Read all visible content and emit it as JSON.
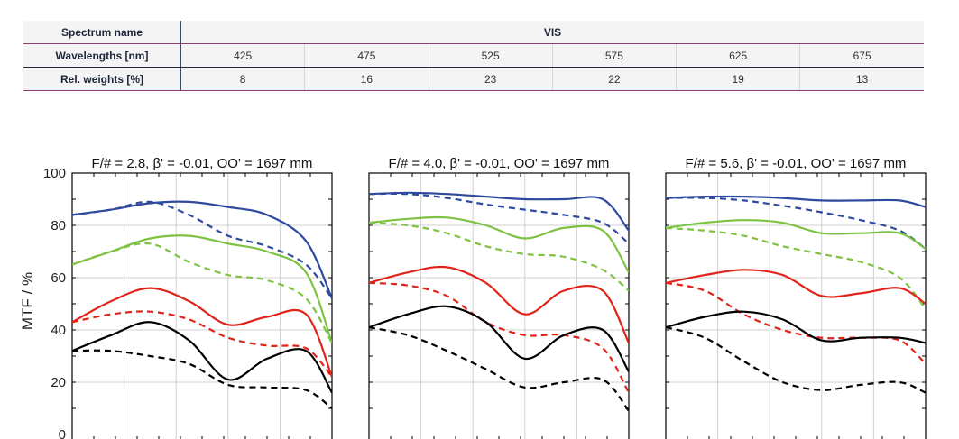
{
  "table": {
    "spectrum_label": "Spectrum name",
    "spectrum_value": "VIS",
    "wavelengths_label": "Wavelengths [nm]",
    "wavelengths": [
      "425",
      "475",
      "525",
      "575",
      "625",
      "675"
    ],
    "weights_label": "Rel. weights [%]",
    "weights": [
      "8",
      "16",
      "23",
      "22",
      "19",
      "13"
    ]
  },
  "colors": {
    "blue": "#2e4a9e",
    "green": "#7ec242",
    "red": "#e2231a",
    "black": "#000000"
  },
  "chart_data": [
    {
      "type": "line",
      "title": "F/# = 2.8, β' = -0.01, OO' = 1697 mm",
      "ylabel": "MTF / %",
      "ylim": [
        0,
        100
      ],
      "yticks": [
        "100",
        "80",
        "60",
        "40",
        "20",
        "0"
      ],
      "xlim": [
        0,
        1
      ],
      "grid": true,
      "series": [
        {
          "color": "blue",
          "style": "solid",
          "x": [
            0,
            0.15,
            0.3,
            0.45,
            0.6,
            0.75,
            0.9,
            1
          ],
          "y": [
            84,
            86,
            88.5,
            89,
            87,
            84,
            74,
            52
          ]
        },
        {
          "color": "blue",
          "style": "dashed",
          "x": [
            0,
            0.15,
            0.3,
            0.45,
            0.6,
            0.75,
            0.9,
            1
          ],
          "y": [
            84,
            86,
            89,
            84,
            76,
            72,
            65,
            52
          ]
        },
        {
          "color": "green",
          "style": "solid",
          "x": [
            0,
            0.15,
            0.3,
            0.45,
            0.6,
            0.75,
            0.9,
            1
          ],
          "y": [
            65,
            70,
            75,
            76,
            73,
            70,
            62,
            35
          ]
        },
        {
          "color": "green",
          "style": "dashed",
          "x": [
            0,
            0.15,
            0.3,
            0.45,
            0.6,
            0.75,
            0.9,
            1
          ],
          "y": [
            65,
            70,
            73,
            66,
            61,
            59,
            52,
            35
          ]
        },
        {
          "color": "red",
          "style": "solid",
          "x": [
            0,
            0.15,
            0.3,
            0.45,
            0.6,
            0.75,
            0.9,
            1
          ],
          "y": [
            43,
            51,
            56,
            51,
            42,
            45,
            46,
            22
          ]
        },
        {
          "color": "red",
          "style": "dashed",
          "x": [
            0,
            0.15,
            0.3,
            0.45,
            0.6,
            0.75,
            0.9,
            1
          ],
          "y": [
            43,
            46,
            47,
            44,
            37,
            34,
            33,
            22
          ]
        },
        {
          "color": "black",
          "style": "solid",
          "x": [
            0,
            0.15,
            0.3,
            0.45,
            0.6,
            0.75,
            0.9,
            1
          ],
          "y": [
            32,
            38,
            43,
            36,
            21,
            29,
            32,
            16
          ]
        },
        {
          "color": "black",
          "style": "dashed",
          "x": [
            0,
            0.15,
            0.3,
            0.45,
            0.6,
            0.75,
            0.9,
            1
          ],
          "y": [
            32,
            32,
            30,
            27,
            19,
            18,
            17,
            10
          ]
        }
      ]
    },
    {
      "type": "line",
      "title": "F/# = 4.0, β' = -0.01, OO' = 1697 mm",
      "ylim": [
        0,
        100
      ],
      "xlim": [
        0,
        1
      ],
      "grid": true,
      "series": [
        {
          "color": "blue",
          "style": "solid",
          "x": [
            0,
            0.15,
            0.3,
            0.45,
            0.6,
            0.75,
            0.9,
            1
          ],
          "y": [
            92,
            92.5,
            92,
            91,
            90,
            90,
            90,
            78
          ]
        },
        {
          "color": "blue",
          "style": "dashed",
          "x": [
            0,
            0.15,
            0.3,
            0.45,
            0.6,
            0.75,
            0.9,
            1
          ],
          "y": [
            92,
            92,
            90.5,
            88,
            86,
            84,
            81,
            73
          ]
        },
        {
          "color": "green",
          "style": "solid",
          "x": [
            0,
            0.15,
            0.3,
            0.45,
            0.6,
            0.75,
            0.9,
            1
          ],
          "y": [
            81,
            82.5,
            83,
            80,
            75,
            79,
            78,
            62
          ]
        },
        {
          "color": "green",
          "style": "dashed",
          "x": [
            0,
            0.15,
            0.3,
            0.45,
            0.6,
            0.75,
            0.9,
            1
          ],
          "y": [
            81,
            80,
            77,
            72,
            69,
            68,
            63,
            55
          ]
        },
        {
          "color": "red",
          "style": "solid",
          "x": [
            0,
            0.15,
            0.3,
            0.45,
            0.6,
            0.75,
            0.9,
            1
          ],
          "y": [
            58,
            62,
            64,
            58,
            46,
            55,
            55,
            35
          ]
        },
        {
          "color": "red",
          "style": "dashed",
          "x": [
            0,
            0.15,
            0.3,
            0.45,
            0.6,
            0.75,
            0.9,
            1
          ],
          "y": [
            58,
            57,
            53,
            43,
            38,
            38,
            33,
            16
          ]
        },
        {
          "color": "black",
          "style": "solid",
          "x": [
            0,
            0.15,
            0.3,
            0.45,
            0.6,
            0.75,
            0.9,
            1
          ],
          "y": [
            41,
            46,
            49,
            43,
            29,
            38,
            40,
            24
          ]
        },
        {
          "color": "black",
          "style": "dashed",
          "x": [
            0,
            0.15,
            0.3,
            0.45,
            0.6,
            0.75,
            0.9,
            1
          ],
          "y": [
            41,
            38,
            32,
            25,
            18,
            20,
            21,
            9
          ]
        }
      ]
    },
    {
      "type": "line",
      "title": "F/# = 5.6, β' = -0.01, OO' = 1697 mm",
      "ylim": [
        0,
        100
      ],
      "xlim": [
        0,
        1
      ],
      "grid": true,
      "series": [
        {
          "color": "blue",
          "style": "solid",
          "x": [
            0,
            0.15,
            0.3,
            0.45,
            0.6,
            0.75,
            0.9,
            1
          ],
          "y": [
            90.5,
            91,
            91,
            90.5,
            89.5,
            89.5,
            89.5,
            87
          ]
        },
        {
          "color": "blue",
          "style": "dashed",
          "x": [
            0,
            0.15,
            0.3,
            0.45,
            0.6,
            0.75,
            0.9,
            1
          ],
          "y": [
            90.5,
            90.5,
            89.5,
            87.5,
            85,
            82,
            78,
            71
          ]
        },
        {
          "color": "green",
          "style": "solid",
          "x": [
            0,
            0.15,
            0.3,
            0.45,
            0.6,
            0.75,
            0.9,
            1
          ],
          "y": [
            79,
            81,
            82,
            81,
            77,
            77,
            77,
            71
          ]
        },
        {
          "color": "green",
          "style": "dashed",
          "x": [
            0,
            0.15,
            0.3,
            0.45,
            0.6,
            0.75,
            0.9,
            1
          ],
          "y": [
            79,
            78,
            76,
            72,
            69,
            66,
            60,
            48
          ]
        },
        {
          "color": "red",
          "style": "solid",
          "x": [
            0,
            0.15,
            0.3,
            0.45,
            0.6,
            0.75,
            0.9,
            1
          ],
          "y": [
            58,
            61,
            63,
            61,
            53,
            54,
            56,
            50
          ]
        },
        {
          "color": "red",
          "style": "dashed",
          "x": [
            0,
            0.15,
            0.3,
            0.45,
            0.6,
            0.75,
            0.9,
            1
          ],
          "y": [
            58,
            55,
            46,
            40,
            37,
            37,
            36,
            27
          ]
        },
        {
          "color": "black",
          "style": "solid",
          "x": [
            0,
            0.15,
            0.3,
            0.45,
            0.6,
            0.75,
            0.9,
            1
          ],
          "y": [
            41,
            45,
            47,
            44,
            36,
            37,
            37,
            35
          ]
        },
        {
          "color": "black",
          "style": "dashed",
          "x": [
            0,
            0.15,
            0.3,
            0.45,
            0.6,
            0.75,
            0.9,
            1
          ],
          "y": [
            41,
            37,
            28,
            20,
            17,
            19,
            20,
            16
          ]
        }
      ]
    }
  ]
}
